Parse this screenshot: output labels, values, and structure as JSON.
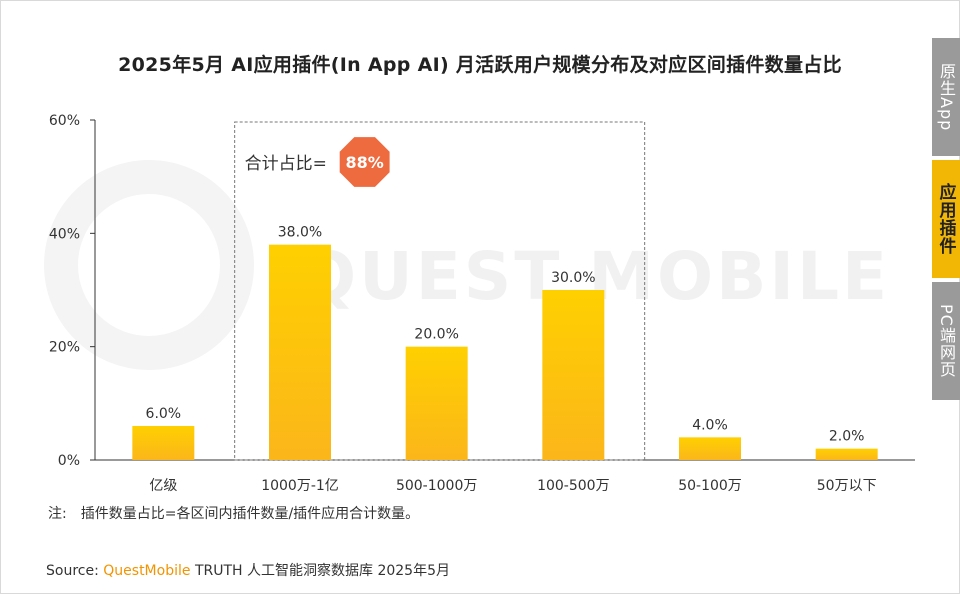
{
  "title": "2025年5月 AI应用插件(In App AI) 月活跃用户规模分布及对应区间插件数量占比",
  "watermark": "QUEST MOBILE",
  "side_tabs": [
    {
      "label": "原生App",
      "active": false
    },
    {
      "label": "应用插件",
      "active": true
    },
    {
      "label": "PC端网页",
      "active": false
    }
  ],
  "highlight": {
    "label": "合计占比=",
    "value": "88%",
    "color": "#ee6a3f"
  },
  "note": {
    "prefix": "注:",
    "text": "插件数量占比=各区间内插件数量/插件应用合计数量。"
  },
  "source": {
    "prefix": "Source:",
    "brand": "QuestMobile",
    "rest": "TRUTH 人工智能洞察数据库 2025年5月"
  },
  "chart_data": {
    "type": "bar",
    "categories": [
      "亿级",
      "1000万-1亿",
      "500-1000万",
      "100-500万",
      "50-100万",
      "50万以下"
    ],
    "values": [
      6.0,
      38.0,
      20.0,
      30.0,
      4.0,
      2.0
    ],
    "value_labels": [
      "6.0%",
      "38.0%",
      "20.0%",
      "30.0%",
      "4.0%",
      "2.0%"
    ],
    "y_ticks": [
      0,
      20,
      40,
      60
    ],
    "y_tick_labels": [
      "0%",
      "20%",
      "40%",
      "60%"
    ],
    "ylim": [
      0,
      60
    ],
    "title": "2025年5月 AI应用插件(In App AI) 月活跃用户规模分布及对应区间插件数量占比",
    "xlabel": "",
    "ylabel": "",
    "grid": false,
    "highlight_categories": [
      "1000万-1亿",
      "500-1000万",
      "100-500万"
    ],
    "colors": {
      "bar_top": "#ffd000",
      "bar_bottom": "#fbb61a",
      "axis": "#333333"
    }
  }
}
